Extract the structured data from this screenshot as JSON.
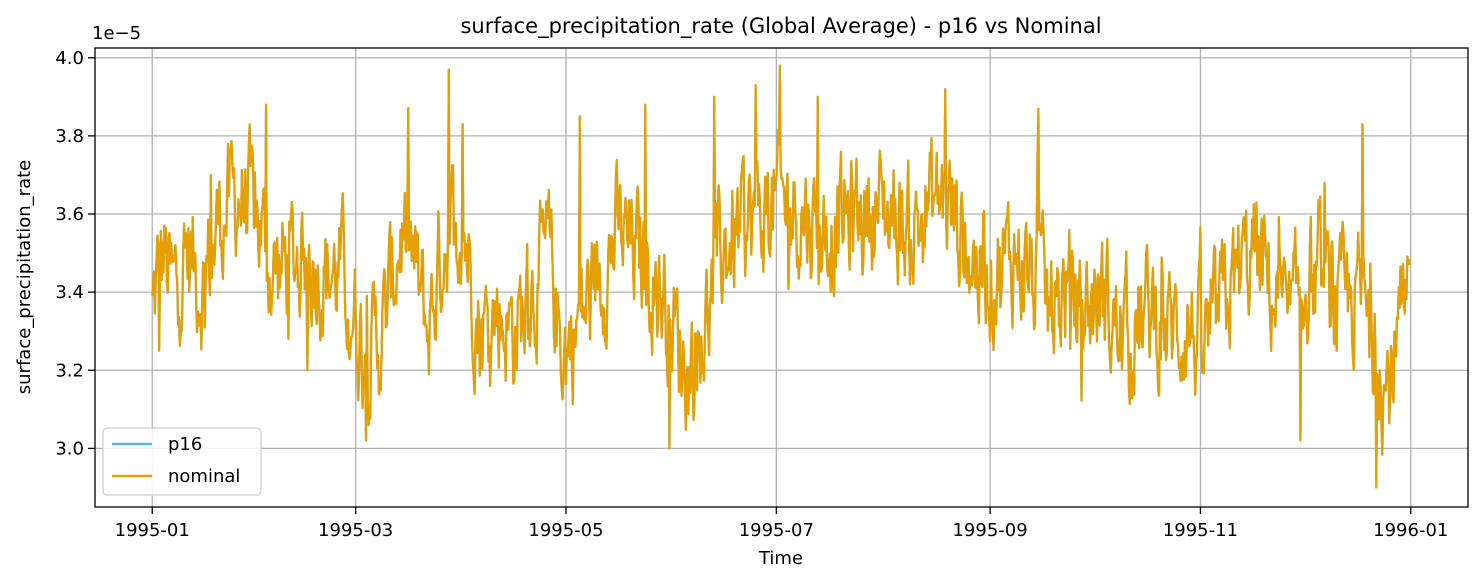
{
  "chart_data": {
    "type": "line",
    "title": "surface_precipitation_rate (Global Average) - p16 vs Nominal",
    "xlabel": "Time",
    "ylabel": "surface_precipitation_rate",
    "y_offset_text": "1e−5",
    "grid": true,
    "legend_position": "lower-left",
    "x_range_days": [
      -16.6,
      381.6
    ],
    "ylim": [
      2.85,
      4.025
    ],
    "x_ticks": [
      {
        "day": 0,
        "label": "1995-01"
      },
      {
        "day": 59,
        "label": "1995-03"
      },
      {
        "day": 120,
        "label": "1995-05"
      },
      {
        "day": 181,
        "label": "1995-07"
      },
      {
        "day": 243,
        "label": "1995-09"
      },
      {
        "day": 304,
        "label": "1995-11"
      },
      {
        "day": 365,
        "label": "1996-01"
      }
    ],
    "y_ticks": [
      {
        "value": 3.0,
        "label": "3.0"
      },
      {
        "value": 3.2,
        "label": "3.2"
      },
      {
        "value": 3.4,
        "label": "3.4"
      },
      {
        "value": 3.6,
        "label": "3.6"
      },
      {
        "value": 3.8,
        "label": "3.8"
      },
      {
        "value": 4.0,
        "label": "4.0"
      }
    ],
    "x_unit_note": "x values are days since 1995-01-01; y values are in units of 1e-5",
    "anchor_points": {
      "day": [
        0,
        3,
        6,
        10,
        15,
        20,
        25,
        30,
        35,
        45,
        50,
        55,
        60,
        63,
        67,
        72,
        75,
        80,
        85,
        90,
        95,
        100,
        105,
        110,
        115,
        118,
        120,
        125,
        130,
        135,
        140,
        145,
        150,
        155,
        160,
        165,
        170,
        175,
        178,
        180,
        185,
        190,
        195,
        200,
        205,
        210,
        215,
        220,
        225,
        230,
        235,
        240,
        245,
        250,
        255,
        260,
        265,
        270,
        275,
        280,
        285,
        290,
        295,
        300,
        305,
        310,
        315,
        320,
        325,
        330,
        335,
        340,
        345,
        350,
        355,
        358,
        362,
        365
      ],
      "value": [
        3.35,
        3.5,
        3.4,
        3.5,
        3.42,
        3.6,
        3.65,
        3.6,
        3.45,
        3.5,
        3.45,
        3.45,
        3.3,
        3.25,
        3.3,
        3.55,
        3.5,
        3.3,
        3.55,
        3.6,
        3.3,
        3.35,
        3.3,
        3.4,
        3.5,
        3.3,
        3.25,
        3.35,
        3.45,
        3.55,
        3.5,
        3.45,
        3.35,
        3.2,
        3.3,
        3.5,
        3.55,
        3.6,
        3.6,
        3.62,
        3.62,
        3.6,
        3.55,
        3.58,
        3.6,
        3.62,
        3.6,
        3.55,
        3.62,
        3.65,
        3.55,
        3.45,
        3.45,
        3.5,
        3.45,
        3.35,
        3.4,
        3.35,
        3.4,
        3.3,
        3.3,
        3.35,
        3.3,
        3.32,
        3.25,
        3.35,
        3.45,
        3.5,
        3.4,
        3.3,
        3.45,
        3.4,
        3.35,
        3.4,
        3.25,
        3.15,
        3.3,
        3.35
      ]
    },
    "notable_extremes": {
      "day": [
        2,
        17,
        33,
        45,
        62,
        86,
        90,
        124,
        143,
        150,
        163,
        175,
        182,
        193,
        230,
        257,
        333,
        340,
        351,
        355,
        356
      ],
      "value": [
        3.25,
        3.7,
        3.88,
        3.2,
        3.02,
        3.97,
        3.83,
        3.85,
        3.88,
        3.0,
        3.9,
        3.93,
        3.98,
        3.9,
        3.92,
        3.87,
        3.02,
        3.68,
        3.83,
        2.9,
        3.2
      ]
    },
    "series": [
      {
        "name": "p16",
        "color": "#56B4E9"
      },
      {
        "name": "nominal",
        "color": "#E69F00"
      }
    ]
  }
}
